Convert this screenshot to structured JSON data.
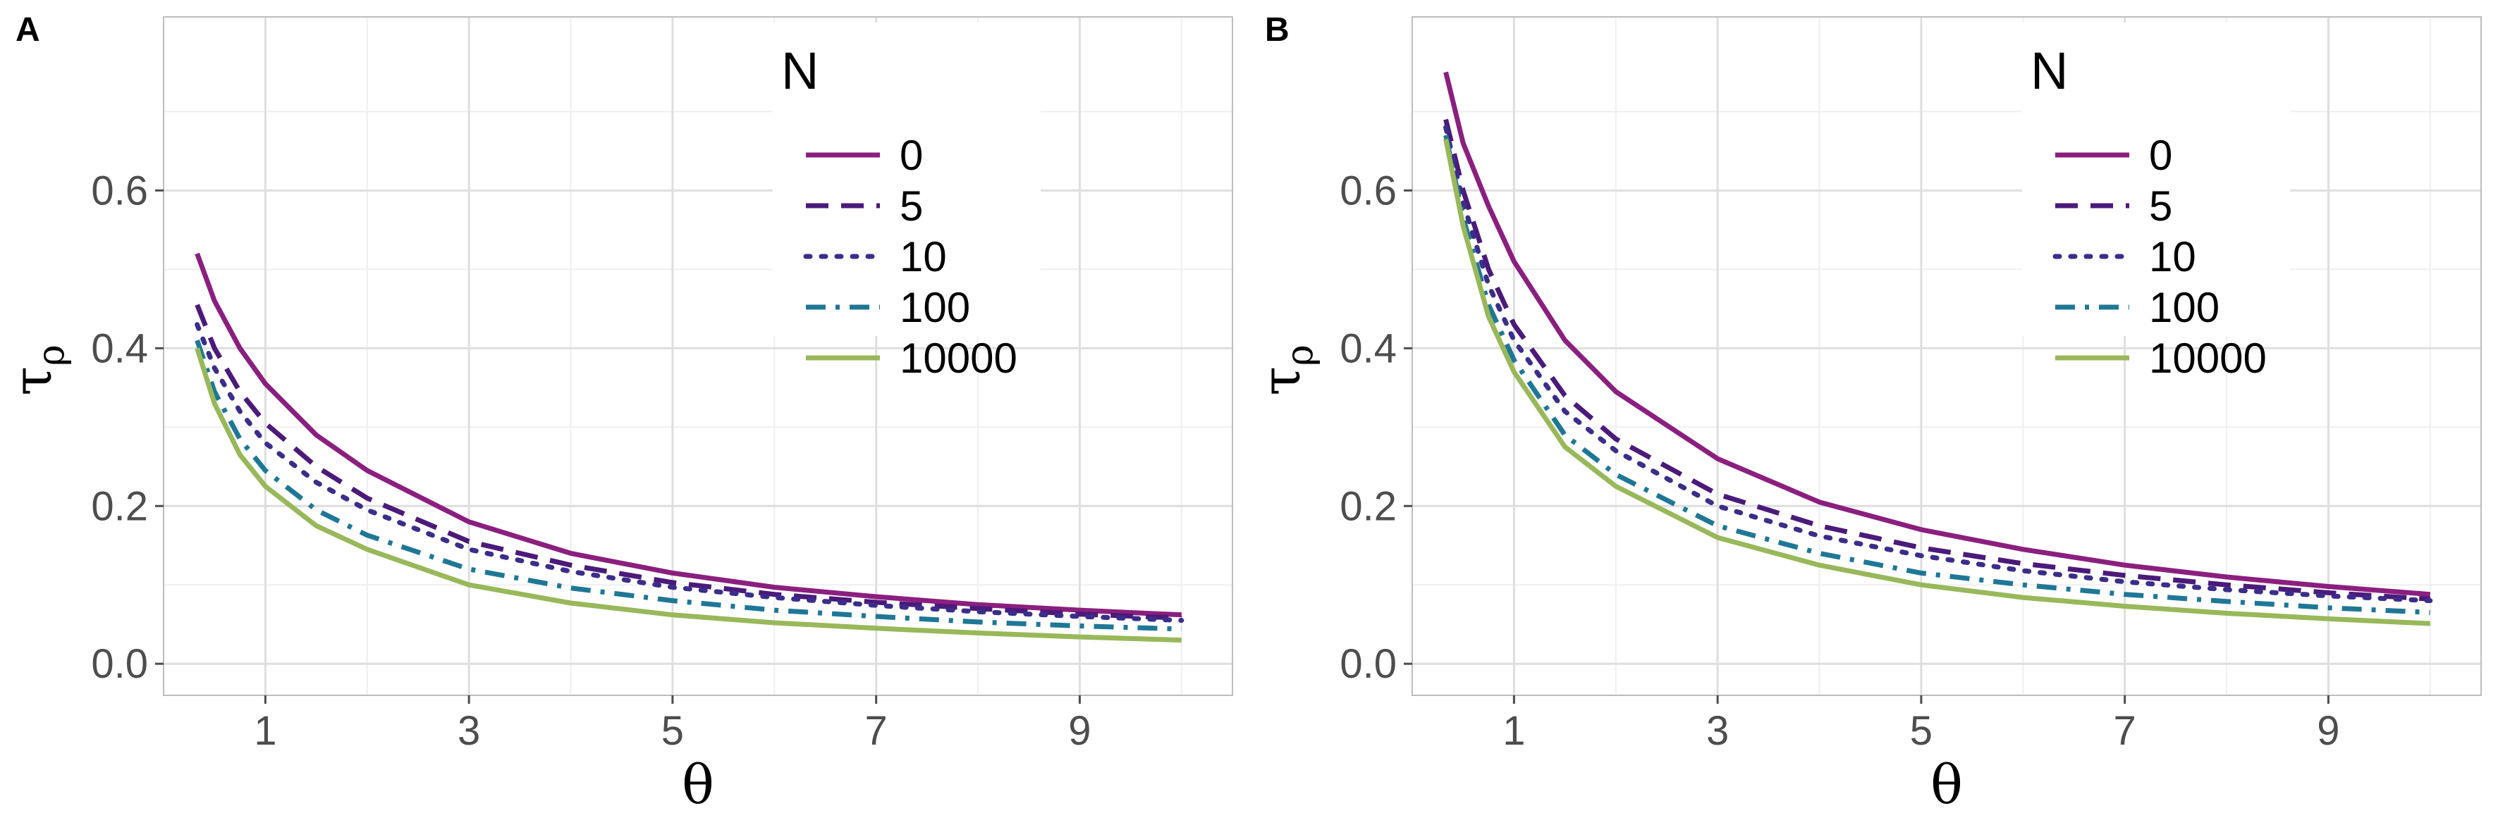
{
  "colors": {
    "N0": "#8b1f7f",
    "N5": "#4b1a7a",
    "N10": "#3a2e8a",
    "N100": "#1f7796",
    "N10000": "#98b85a",
    "grid_major": "#dedede",
    "grid_minor": "#efefef",
    "panel_border": "#bdbdbd"
  },
  "chart_data": [
    {
      "type": "line",
      "panel_label": "A",
      "xlabel": "θ",
      "ylabel_main": "τ",
      "ylabel_sub": "ρ",
      "xlim": [
        0,
        10.5
      ],
      "ylim": [
        -0.04,
        0.82
      ],
      "x_ticks": [
        1,
        3,
        5,
        7,
        9
      ],
      "y_ticks": [
        0.0,
        0.2,
        0.4,
        0.6
      ],
      "y_tick_labels": [
        "0.0",
        "0.2",
        "0.4",
        "0.6"
      ],
      "grid": true,
      "legend_title": "N",
      "legend_position": "top-right",
      "series": [
        {
          "name": "0",
          "style": "solid",
          "color_key": "N0",
          "x": [
            0.33,
            0.5,
            0.75,
            1,
            1.5,
            2,
            3,
            4,
            5,
            6,
            7,
            8,
            9,
            10
          ],
          "y": [
            0.52,
            0.46,
            0.4,
            0.355,
            0.29,
            0.245,
            0.18,
            0.14,
            0.115,
            0.097,
            0.085,
            0.075,
            0.068,
            0.062
          ]
        },
        {
          "name": "5",
          "style": "dashed",
          "color_key": "N5",
          "x": [
            0.33,
            0.5,
            0.75,
            1,
            1.5,
            2,
            3,
            4,
            5,
            6,
            7,
            8,
            9,
            10
          ],
          "y": [
            0.455,
            0.4,
            0.345,
            0.305,
            0.25,
            0.21,
            0.155,
            0.125,
            0.103,
            0.088,
            0.078,
            0.07,
            0.063,
            0.058
          ]
        },
        {
          "name": "10",
          "style": "dotted",
          "color_key": "N10",
          "x": [
            0.33,
            0.5,
            0.75,
            1,
            1.5,
            2,
            3,
            4,
            5,
            6,
            7,
            8,
            9,
            10
          ],
          "y": [
            0.43,
            0.375,
            0.32,
            0.28,
            0.23,
            0.195,
            0.145,
            0.117,
            0.097,
            0.084,
            0.074,
            0.066,
            0.06,
            0.055
          ]
        },
        {
          "name": "100",
          "style": "dotdash",
          "color_key": "N100",
          "x": [
            0.33,
            0.5,
            0.75,
            1,
            1.5,
            2,
            3,
            4,
            5,
            6,
            7,
            8,
            9,
            10
          ],
          "y": [
            0.41,
            0.345,
            0.285,
            0.245,
            0.195,
            0.163,
            0.12,
            0.096,
            0.08,
            0.068,
            0.06,
            0.053,
            0.048,
            0.044
          ]
        },
        {
          "name": "10000",
          "style": "solid",
          "color_key": "N10000",
          "x": [
            0.33,
            0.5,
            0.75,
            1,
            1.5,
            2,
            3,
            4,
            5,
            6,
            7,
            8,
            9,
            10
          ],
          "y": [
            0.4,
            0.33,
            0.265,
            0.225,
            0.175,
            0.145,
            0.1,
            0.077,
            0.062,
            0.052,
            0.045,
            0.039,
            0.034,
            0.03
          ]
        }
      ]
    },
    {
      "type": "line",
      "panel_label": "B",
      "xlabel": "θ",
      "ylabel_main": "τ",
      "ylabel_sub": "ρ",
      "xlim": [
        0,
        10.5
      ],
      "ylim": [
        -0.04,
        0.82
      ],
      "x_ticks": [
        1,
        3,
        5,
        7,
        9
      ],
      "y_ticks": [
        0.0,
        0.2,
        0.4,
        0.6
      ],
      "y_tick_labels": [
        "0.0",
        "0.2",
        "0.4",
        "0.6"
      ],
      "grid": true,
      "legend_title": "N",
      "legend_position": "top-right",
      "series": [
        {
          "name": "0",
          "style": "solid",
          "color_key": "N0",
          "x": [
            0.33,
            0.5,
            0.75,
            1,
            1.5,
            2,
            3,
            4,
            5,
            6,
            7,
            8,
            9,
            10
          ],
          "y": [
            0.75,
            0.66,
            0.58,
            0.51,
            0.41,
            0.345,
            0.26,
            0.205,
            0.17,
            0.145,
            0.125,
            0.11,
            0.098,
            0.088
          ]
        },
        {
          "name": "5",
          "style": "dashed",
          "color_key": "N5",
          "x": [
            0.33,
            0.5,
            0.75,
            1,
            1.5,
            2,
            3,
            4,
            5,
            6,
            7,
            8,
            9,
            10
          ],
          "y": [
            0.69,
            0.6,
            0.5,
            0.43,
            0.34,
            0.285,
            0.215,
            0.175,
            0.147,
            0.127,
            0.112,
            0.1,
            0.09,
            0.082
          ]
        },
        {
          "name": "10",
          "style": "dotted",
          "color_key": "N10",
          "x": [
            0.33,
            0.5,
            0.75,
            1,
            1.5,
            2,
            3,
            4,
            5,
            6,
            7,
            8,
            9,
            10
          ],
          "y": [
            0.68,
            0.585,
            0.48,
            0.41,
            0.32,
            0.27,
            0.2,
            0.162,
            0.137,
            0.118,
            0.104,
            0.094,
            0.086,
            0.08
          ]
        },
        {
          "name": "100",
          "style": "dotdash",
          "color_key": "N100",
          "x": [
            0.33,
            0.5,
            0.75,
            1,
            1.5,
            2,
            3,
            4,
            5,
            6,
            7,
            8,
            9,
            10
          ],
          "y": [
            0.67,
            0.565,
            0.455,
            0.385,
            0.29,
            0.24,
            0.175,
            0.14,
            0.115,
            0.1,
            0.088,
            0.079,
            0.071,
            0.065
          ]
        },
        {
          "name": "10000",
          "style": "solid",
          "color_key": "N10000",
          "x": [
            0.33,
            0.5,
            0.75,
            1,
            1.5,
            2,
            3,
            4,
            5,
            6,
            7,
            8,
            9,
            10
          ],
          "y": [
            0.665,
            0.555,
            0.44,
            0.37,
            0.275,
            0.225,
            0.16,
            0.125,
            0.1,
            0.084,
            0.073,
            0.064,
            0.057,
            0.051
          ]
        }
      ]
    }
  ]
}
